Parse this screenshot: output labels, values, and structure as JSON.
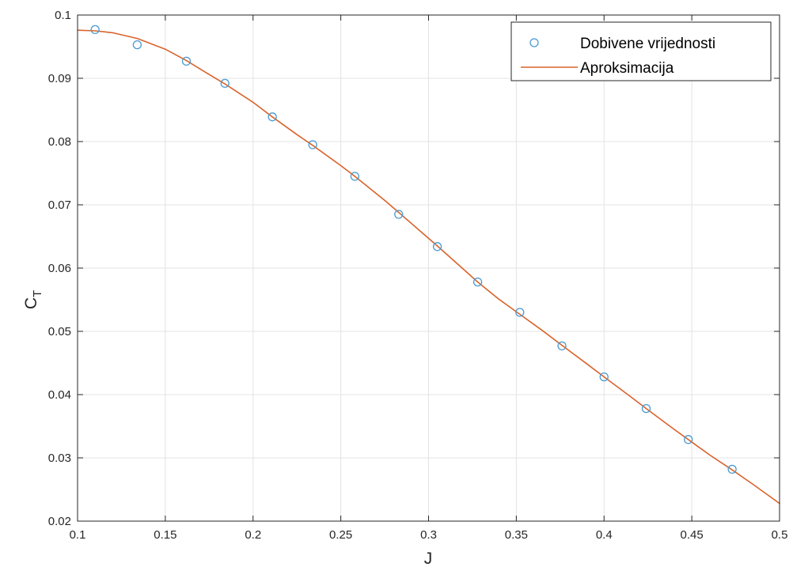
{
  "chart_data": {
    "type": "scatter",
    "xlabel": "J",
    "ylabel": {
      "main": "C",
      "sub": "T"
    },
    "xlim": [
      0.1,
      0.5
    ],
    "ylim": [
      0.02,
      0.1
    ],
    "xticks": [
      "0.1",
      "0.15",
      "0.2",
      "0.25",
      "0.3",
      "0.35",
      "0.4",
      "0.45",
      "0.5"
    ],
    "yticks": [
      "0.02",
      "0.03",
      "0.04",
      "0.05",
      "0.06",
      "0.07",
      "0.08",
      "0.09",
      "0.1"
    ],
    "grid": true,
    "legend_position": "top-right",
    "series": [
      {
        "name": "Dobivene vrijednosti",
        "style": "markers",
        "color": "#4a9ad1",
        "x": [
          0.11,
          0.134,
          0.162,
          0.184,
          0.211,
          0.234,
          0.258,
          0.283,
          0.305,
          0.328,
          0.352,
          0.376,
          0.4,
          0.424,
          0.448,
          0.473
        ],
        "y": [
          0.0977,
          0.0953,
          0.0927,
          0.0892,
          0.0839,
          0.0795,
          0.0745,
          0.0685,
          0.0634,
          0.0578,
          0.053,
          0.0477,
          0.0428,
          0.0378,
          0.0329,
          0.0282
        ]
      },
      {
        "name": "Aproksimacija",
        "style": "line",
        "color": "#d9632b",
        "x": [
          0.1,
          0.11,
          0.12,
          0.134,
          0.15,
          0.162,
          0.175,
          0.184,
          0.2,
          0.211,
          0.225,
          0.234,
          0.25,
          0.258,
          0.275,
          0.283,
          0.3,
          0.305,
          0.32,
          0.328,
          0.34,
          0.352,
          0.365,
          0.376,
          0.39,
          0.4,
          0.415,
          0.424,
          0.44,
          0.448,
          0.46,
          0.473,
          0.485,
          0.5
        ],
        "y": [
          0.0976,
          0.0975,
          0.0972,
          0.0963,
          0.0946,
          0.0928,
          0.0906,
          0.0891,
          0.0862,
          0.0839,
          0.0811,
          0.0794,
          0.0762,
          0.0745,
          0.0707,
          0.0688,
          0.0647,
          0.0635,
          0.0598,
          0.0578,
          0.0551,
          0.0527,
          0.0501,
          0.0478,
          0.0449,
          0.0428,
          0.0397,
          0.0378,
          0.0345,
          0.0329,
          0.0305,
          0.0281,
          0.0258,
          0.0228
        ]
      }
    ]
  }
}
